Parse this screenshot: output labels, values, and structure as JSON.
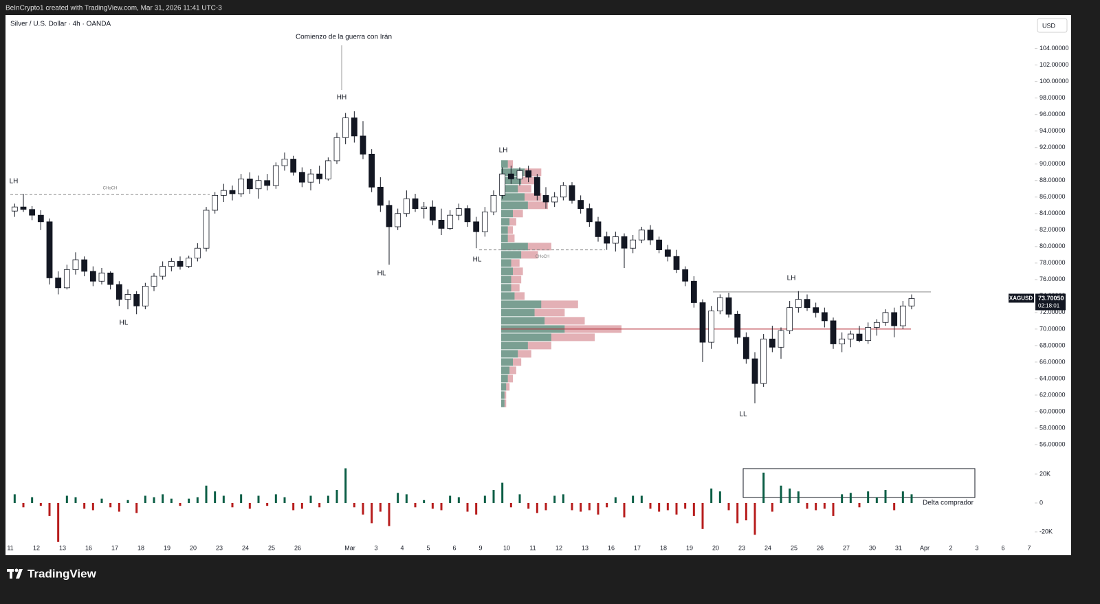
{
  "header": {
    "credit": "BeInCrypto1 created with TradingView.com, Mar 31, 2026 11:41 UTC-3",
    "brand": "TradingView"
  },
  "chart_data": {
    "type": "candlestick",
    "title": "Silver / U.S. Dollar · 4h · OANDA",
    "currency": "USD",
    "up_color": "#ffffff",
    "down_color": "#131722",
    "categories": [
      "11",
      "12",
      "13",
      "16",
      "17",
      "18",
      "19",
      "20",
      "23",
      "24",
      "25",
      "26",
      null,
      "Mar",
      "3",
      "4",
      "5",
      "6",
      "9",
      "10",
      "11",
      "12",
      "13",
      "16",
      "17",
      "18",
      "19",
      "20",
      "23",
      "24",
      "25",
      "26",
      "27",
      "30",
      "31",
      "Apr",
      "2",
      "3",
      "6",
      "7"
    ],
    "ylim": [
      54.5,
      107.8
    ],
    "yticks": [
      {
        "value": 56,
        "label": "56.00000"
      },
      {
        "value": 58,
        "label": "58.00000"
      },
      {
        "value": 60,
        "label": "60.00000"
      },
      {
        "value": 62,
        "label": "62.00000"
      },
      {
        "value": 64,
        "label": "64.00000"
      },
      {
        "value": 66,
        "label": "66.00000"
      },
      {
        "value": 68,
        "label": "68.00000"
      },
      {
        "value": 70,
        "label": "70.00000"
      },
      {
        "value": 72,
        "label": "72.00000"
      },
      {
        "value": 74,
        "label": "74.00000"
      },
      {
        "value": 76,
        "label": "76.00000"
      },
      {
        "value": 78,
        "label": "78.00000"
      },
      {
        "value": 80,
        "label": "80.00000"
      },
      {
        "value": 82,
        "label": "82.00000"
      },
      {
        "value": 84,
        "label": "84.00000"
      },
      {
        "value": 86,
        "label": "86.00000"
      },
      {
        "value": 88,
        "label": "88.00000"
      },
      {
        "value": 90,
        "label": "90.00000"
      },
      {
        "value": 92,
        "label": "92.00000"
      },
      {
        "value": 94,
        "label": "94.00000"
      },
      {
        "value": 96,
        "label": "96.00000"
      },
      {
        "value": 98,
        "label": "98.00000"
      },
      {
        "value": 100,
        "label": "100.00000"
      },
      {
        "value": 102,
        "label": "102.00000"
      },
      {
        "value": 104,
        "label": "104.00000"
      }
    ],
    "ohlc": [
      [
        84.3,
        85.2,
        83.6,
        84.8
      ],
      [
        84.8,
        86.4,
        84.2,
        84.5
      ],
      [
        84.5,
        84.9,
        83.2,
        83.8
      ],
      [
        83.8,
        84.4,
        82.0,
        83.0
      ],
      [
        83.0,
        83.4,
        75.4,
        76.2
      ],
      [
        76.2,
        77.0,
        74.2,
        75.0
      ],
      [
        75.0,
        77.8,
        74.8,
        77.2
      ],
      [
        77.2,
        79.3,
        76.6,
        78.4
      ],
      [
        78.4,
        78.8,
        76.4,
        77.0
      ],
      [
        77.0,
        77.6,
        75.2,
        75.8
      ],
      [
        75.8,
        77.4,
        75.4,
        76.8
      ],
      [
        76.8,
        77.0,
        74.8,
        75.4
      ],
      [
        75.4,
        75.8,
        72.8,
        73.6
      ],
      [
        73.6,
        74.8,
        72.4,
        74.2
      ],
      [
        74.2,
        74.6,
        71.8,
        72.8
      ],
      [
        72.8,
        75.6,
        72.4,
        75.2
      ],
      [
        75.2,
        76.8,
        74.6,
        76.4
      ],
      [
        76.4,
        78.2,
        76.0,
        77.6
      ],
      [
        77.6,
        78.6,
        77.0,
        78.2
      ],
      [
        78.2,
        78.8,
        77.2,
        77.6
      ],
      [
        77.6,
        78.9,
        77.4,
        78.6
      ],
      [
        78.6,
        80.4,
        78.2,
        79.8
      ],
      [
        79.8,
        84.8,
        79.4,
        84.4
      ],
      [
        84.4,
        86.6,
        84.0,
        86.2
      ],
      [
        86.2,
        87.6,
        85.4,
        86.8
      ],
      [
        86.8,
        87.4,
        85.6,
        86.4
      ],
      [
        86.4,
        88.8,
        86.0,
        88.2
      ],
      [
        88.2,
        89.0,
        86.4,
        87.0
      ],
      [
        87.0,
        88.6,
        85.8,
        88.0
      ],
      [
        88.0,
        88.8,
        86.8,
        87.4
      ],
      [
        87.4,
        90.2,
        87.0,
        89.8
      ],
      [
        89.8,
        91.4,
        89.2,
        90.6
      ],
      [
        90.6,
        91.0,
        88.6,
        89.0
      ],
      [
        89.0,
        89.6,
        87.2,
        87.8
      ],
      [
        87.8,
        89.4,
        86.8,
        88.8
      ],
      [
        88.8,
        89.8,
        87.6,
        88.2
      ],
      [
        88.2,
        90.8,
        88.0,
        90.4
      ],
      [
        90.4,
        93.8,
        90.0,
        93.2
      ],
      [
        93.2,
        96.2,
        92.4,
        95.6
      ],
      [
        95.6,
        96.4,
        92.6,
        93.4
      ],
      [
        93.4,
        95.2,
        90.6,
        91.2
      ],
      [
        91.2,
        91.8,
        86.6,
        87.2
      ],
      [
        87.2,
        88.4,
        84.2,
        85.0
      ],
      [
        85.0,
        85.6,
        77.8,
        82.4
      ],
      [
        82.4,
        84.6,
        82.0,
        84.0
      ],
      [
        84.0,
        86.8,
        83.6,
        85.8
      ],
      [
        85.8,
        86.4,
        84.2,
        84.6
      ],
      [
        84.6,
        85.4,
        83.4,
        84.8
      ],
      [
        84.8,
        85.6,
        82.6,
        83.2
      ],
      [
        83.2,
        84.6,
        81.4,
        82.2
      ],
      [
        82.2,
        84.4,
        82.0,
        83.8
      ],
      [
        83.8,
        85.2,
        83.2,
        84.6
      ],
      [
        84.6,
        85.0,
        82.4,
        83.0
      ],
      [
        83.0,
        83.6,
        79.8,
        81.8
      ],
      [
        81.8,
        84.8,
        81.2,
        84.2
      ],
      [
        84.2,
        86.8,
        83.8,
        86.2
      ],
      [
        86.2,
        89.6,
        85.8,
        88.8
      ],
      [
        88.8,
        89.8,
        87.6,
        88.2
      ],
      [
        88.2,
        89.6,
        87.4,
        89.2
      ],
      [
        89.2,
        89.8,
        87.8,
        88.4
      ],
      [
        88.4,
        88.8,
        85.6,
        86.2
      ],
      [
        86.2,
        87.2,
        84.6,
        85.4
      ],
      [
        85.4,
        86.6,
        84.8,
        86.0
      ],
      [
        86.0,
        87.8,
        85.6,
        87.4
      ],
      [
        87.4,
        87.8,
        85.2,
        85.6
      ],
      [
        85.6,
        86.2,
        84.0,
        84.6
      ],
      [
        84.6,
        85.2,
        82.4,
        83.0
      ],
      [
        83.0,
        83.6,
        80.6,
        81.2
      ],
      [
        81.2,
        81.8,
        79.6,
        80.4
      ],
      [
        80.4,
        81.8,
        79.4,
        81.2
      ],
      [
        81.2,
        81.6,
        77.4,
        79.8
      ],
      [
        79.8,
        81.4,
        79.2,
        80.8
      ],
      [
        80.8,
        82.4,
        80.4,
        82.0
      ],
      [
        82.0,
        82.6,
        80.2,
        80.8
      ],
      [
        80.8,
        81.2,
        79.2,
        79.6
      ],
      [
        79.6,
        80.2,
        78.2,
        78.8
      ],
      [
        78.8,
        79.6,
        76.8,
        77.2
      ],
      [
        77.2,
        77.6,
        75.2,
        75.8
      ],
      [
        75.8,
        76.4,
        72.6,
        73.2
      ],
      [
        73.2,
        73.6,
        66.0,
        68.4
      ],
      [
        68.4,
        72.8,
        67.6,
        72.2
      ],
      [
        72.2,
        74.2,
        71.8,
        73.8
      ],
      [
        73.8,
        74.4,
        71.4,
        71.8
      ],
      [
        71.8,
        72.2,
        68.2,
        69.0
      ],
      [
        69.0,
        69.6,
        65.8,
        66.4
      ],
      [
        66.4,
        67.2,
        61.0,
        63.4
      ],
      [
        63.4,
        69.4,
        63.0,
        68.8
      ],
      [
        68.8,
        70.4,
        67.2,
        67.8
      ],
      [
        67.8,
        70.2,
        66.4,
        69.8
      ],
      [
        69.8,
        73.4,
        69.4,
        72.6
      ],
      [
        72.6,
        74.6,
        72.0,
        73.6
      ],
      [
        73.6,
        74.2,
        72.2,
        72.6
      ],
      [
        72.6,
        73.2,
        71.4,
        72.0
      ],
      [
        72.0,
        72.6,
        70.2,
        71.0
      ],
      [
        71.0,
        71.4,
        67.6,
        68.2
      ],
      [
        68.2,
        69.6,
        67.2,
        68.8
      ],
      [
        68.8,
        69.8,
        67.8,
        69.4
      ],
      [
        69.4,
        70.4,
        68.4,
        68.6
      ],
      [
        68.6,
        70.8,
        68.2,
        70.2
      ],
      [
        70.2,
        71.2,
        69.2,
        70.8
      ],
      [
        70.8,
        72.4,
        70.4,
        72.0
      ],
      [
        72.0,
        72.6,
        69.0,
        70.4
      ],
      [
        70.4,
        73.4,
        70.0,
        72.8
      ],
      [
        72.8,
        74.2,
        72.4,
        73.7005
      ]
    ],
    "last_price": {
      "symbol": "XAGUSD",
      "value": 73.7005,
      "label": "73.70050",
      "countdown": "02:18:01"
    },
    "volume_profile": {
      "up_color": "#4e7f6e",
      "down_color": "#c0505a",
      "levels": [
        61,
        62,
        63,
        64,
        65,
        66,
        67,
        68,
        69,
        70,
        71,
        72,
        73,
        74,
        75,
        76,
        77,
        78,
        79,
        80,
        81,
        82,
        83,
        84,
        85,
        86,
        87,
        88,
        89,
        90
      ],
      "up": [
        2,
        2,
        3,
        4,
        5,
        7,
        10,
        16,
        30,
        38,
        26,
        20,
        24,
        8,
        6,
        6,
        7,
        6,
        12,
        16,
        4,
        4,
        5,
        7,
        16,
        14,
        10,
        12,
        14,
        4
      ],
      "down": [
        1,
        1,
        2,
        3,
        4,
        5,
        8,
        14,
        26,
        34,
        24,
        18,
        22,
        6,
        5,
        6,
        6,
        5,
        10,
        14,
        4,
        3,
        4,
        6,
        12,
        10,
        8,
        9,
        10,
        3
      ]
    },
    "lines": [
      {
        "label": "CHoCH",
        "price": 86.3,
        "color": "#888888",
        "dashed": true
      },
      {
        "label": "CHoCH",
        "price": 79.6,
        "color": "#888888",
        "dashed": true
      },
      {
        "price": 74.5,
        "color": "#888888",
        "dashed": false
      },
      {
        "price": 70,
        "color": "#b22833",
        "dashed": false
      }
    ],
    "annotations": [
      "LH",
      "HL",
      "HH",
      "HL",
      "HL",
      "LH",
      "LH",
      "LL",
      "Comienzo de la guerra con Irán",
      "Delta comprador"
    ],
    "delta": {
      "up_color": "#0b5e45",
      "down_color": "#b71c1c",
      "ylim": [
        -27600,
        27100
      ],
      "yticks": [
        {
          "value": 20000,
          "label": "20K"
        },
        0,
        {
          "value": -20000,
          "label": "-20K"
        }
      ],
      "values": [
        6000,
        -3000,
        4000,
        -2000,
        -9000,
        -27000,
        5000,
        4000,
        -4000,
        -5000,
        3000,
        -3000,
        -6000,
        2000,
        -7000,
        5000,
        4000,
        6000,
        3000,
        -2000,
        3000,
        4000,
        12000,
        8000,
        5000,
        -3000,
        6000,
        -4000,
        5000,
        -2000,
        6000,
        4000,
        -5000,
        -4000,
        5000,
        -3000,
        5000,
        9000,
        24000,
        -3000,
        -8000,
        -14000,
        -6000,
        -16000,
        7000,
        6000,
        -3000,
        2000,
        -4000,
        -5000,
        5000,
        4000,
        -6000,
        -8000,
        5000,
        9000,
        14000,
        -3000,
        6000,
        -4000,
        -7000,
        -5000,
        5000,
        6000,
        -5000,
        -6000,
        -5000,
        -8000,
        -3000,
        4000,
        -10000,
        5000,
        5000,
        -4000,
        -6000,
        -5000,
        -8000,
        -4000,
        -9000,
        -18000,
        10000,
        8000,
        -5000,
        -14000,
        -12000,
        -22000,
        21000,
        -6000,
        12000,
        10000,
        8000,
        -4000,
        -5000,
        -4000,
        -9000,
        6000,
        7000,
        -3000,
        8000,
        4000,
        9000,
        -5000,
        8000,
        6000
      ]
    }
  }
}
